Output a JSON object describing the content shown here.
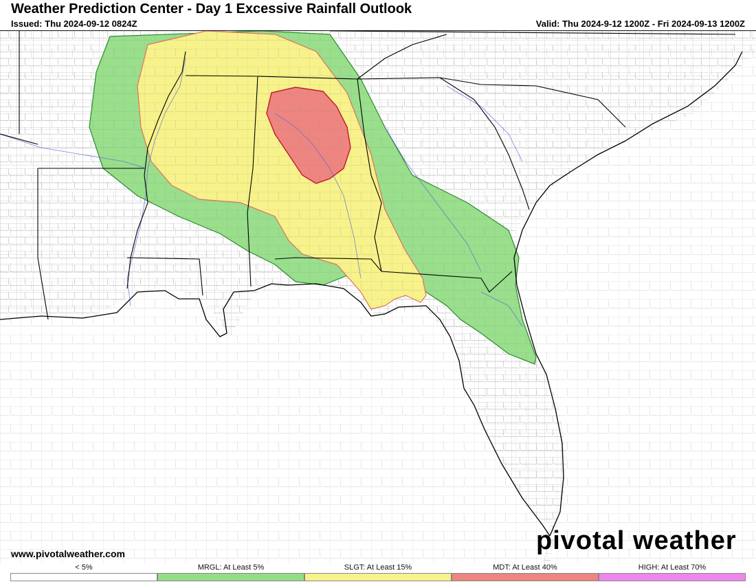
{
  "header": {
    "title": "Weather Prediction Center - Day 1 Excessive Rainfall Outlook",
    "issued": "Issued: Thu 2024-09-12 0824Z",
    "valid": "Valid: Thu 2024-9-12 1200Z - Fri 2024-09-13 1200Z"
  },
  "footer": {
    "website": "www.pivotalweather.com",
    "brand": "pivotal weather"
  },
  "colors": {
    "marginal": "#94dd86",
    "slight": "#f7f28a",
    "moderate": "#ee8580",
    "high": "#ee86ee",
    "none": "#ffffff",
    "state_lines": "#000000",
    "county_lines": "#9a9a9a",
    "rivers": "#5566dd"
  },
  "legend": {
    "items": [
      {
        "label": "< 5%",
        "color": "#ffffff"
      },
      {
        "label": "MRGL: At Least 5%",
        "color": "#94dd86"
      },
      {
        "label": "SLGT: At Least 15%",
        "color": "#f7f28a"
      },
      {
        "label": "MDT: At Least 40%",
        "color": "#ee8580"
      },
      {
        "label": "HIGH: At Least 70%",
        "color": "#ee86ee"
      }
    ]
  }
}
